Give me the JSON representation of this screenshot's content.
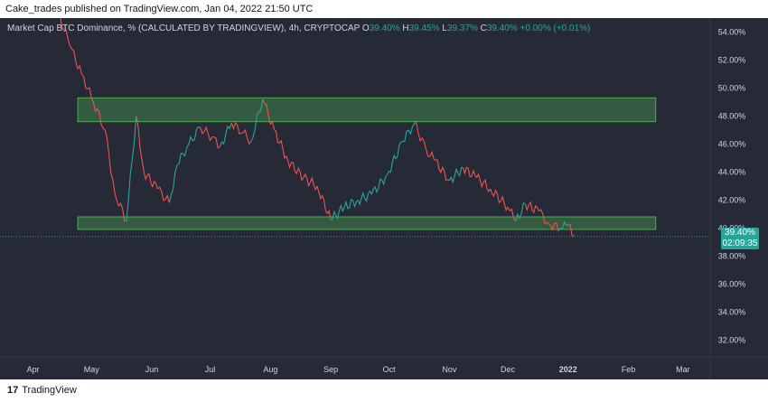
{
  "header": {
    "publisher_line": "Cake_trades published on TradingView.com, Jan 04, 2022 21:50 UTC"
  },
  "legend": {
    "symbol": "Market Cap BTC Dominance, % (CALCULATED BY TRADINGVIEW), 4h, CRYPTOCAP",
    "o_label": "O",
    "o_value": "39.40%",
    "h_label": "H",
    "h_value": "39.45%",
    "l_label": "L",
    "l_value": "39.37%",
    "c_label": "C",
    "c_value": "39.40% +0.00% (+0.01%)"
  },
  "price_tag": {
    "price": "39.40%",
    "countdown": "02:09:35"
  },
  "footer": {
    "brand": "TradingView"
  },
  "colors": {
    "background": "#262a36",
    "up": "#26a69a",
    "down": "#ef5350",
    "zone_fill": "#3a6b45",
    "zone_stroke": "#4caf50",
    "axis_text": "#d1d4dc"
  },
  "chart_data": {
    "type": "line",
    "title": "Market Cap BTC Dominance, % (CALCULATED BY TRADINGVIEW), 4h, CRYPTOCAP",
    "x_tick_labels": [
      "Apr",
      "May",
      "Jun",
      "Jul",
      "Aug",
      "Sep",
      "Oct",
      "Nov",
      "Dec",
      "2022",
      "Feb",
      "Mar"
    ],
    "y_tick_labels": [
      "54.00%",
      "52.00%",
      "50.00%",
      "48.00%",
      "46.00%",
      "44.00%",
      "42.00%",
      "40.00%",
      "38.00%",
      "36.00%",
      "34.00%",
      "32.00%"
    ],
    "ylim": [
      30.8,
      55
    ],
    "x_range": [
      "2021-03-15",
      "2022-03-15"
    ],
    "series": [
      {
        "x": [
          "2021-04-15",
          "2021-04-20",
          "2021-04-26",
          "2021-05-02",
          "2021-05-08",
          "2021-05-13",
          "2021-05-19",
          "2021-05-24",
          "2021-05-28",
          "2021-06-04",
          "2021-06-10",
          "2021-06-14",
          "2021-06-20",
          "2021-06-26",
          "2021-07-02",
          "2021-07-06",
          "2021-07-12",
          "2021-07-18",
          "2021-07-22",
          "2021-07-28",
          "2021-08-03",
          "2021-08-10",
          "2021-08-18",
          "2021-08-25",
          "2021-09-01",
          "2021-09-08",
          "2021-09-15",
          "2021-09-22",
          "2021-09-30",
          "2021-10-08",
          "2021-10-14",
          "2021-10-20",
          "2021-10-24",
          "2021-11-01",
          "2021-11-08",
          "2021-11-15",
          "2021-11-22",
          "2021-12-01",
          "2021-12-05",
          "2021-12-10",
          "2021-12-17",
          "2021-12-22",
          "2021-12-28",
          "2022-01-01",
          "2022-01-04"
        ],
        "values": [
          55.0,
          53.0,
          51.0,
          49.0,
          47.0,
          42.5,
          40.5,
          48.0,
          44.0,
          42.8,
          41.8,
          44.5,
          46.0,
          47.2,
          46.5,
          45.8,
          47.5,
          46.8,
          46.2,
          49.2,
          47.0,
          44.8,
          43.6,
          43.0,
          40.6,
          41.5,
          42.0,
          42.4,
          43.8,
          46.2,
          47.5,
          45.6,
          44.9,
          43.4,
          44.3,
          43.6,
          42.8,
          41.5,
          40.5,
          41.7,
          41.2,
          40.3,
          40.0,
          40.2,
          39.4
        ]
      }
    ],
    "zones": [
      {
        "y_top": 49.3,
        "y_bottom": 47.6,
        "x_start": "2021-04-24",
        "x_end": "2022-02-15"
      },
      {
        "y_top": 40.8,
        "y_bottom": 39.9,
        "x_start": "2021-04-24",
        "x_end": "2022-02-15"
      }
    ],
    "last_value": 39.4,
    "grid": false,
    "legend": "top-left"
  }
}
